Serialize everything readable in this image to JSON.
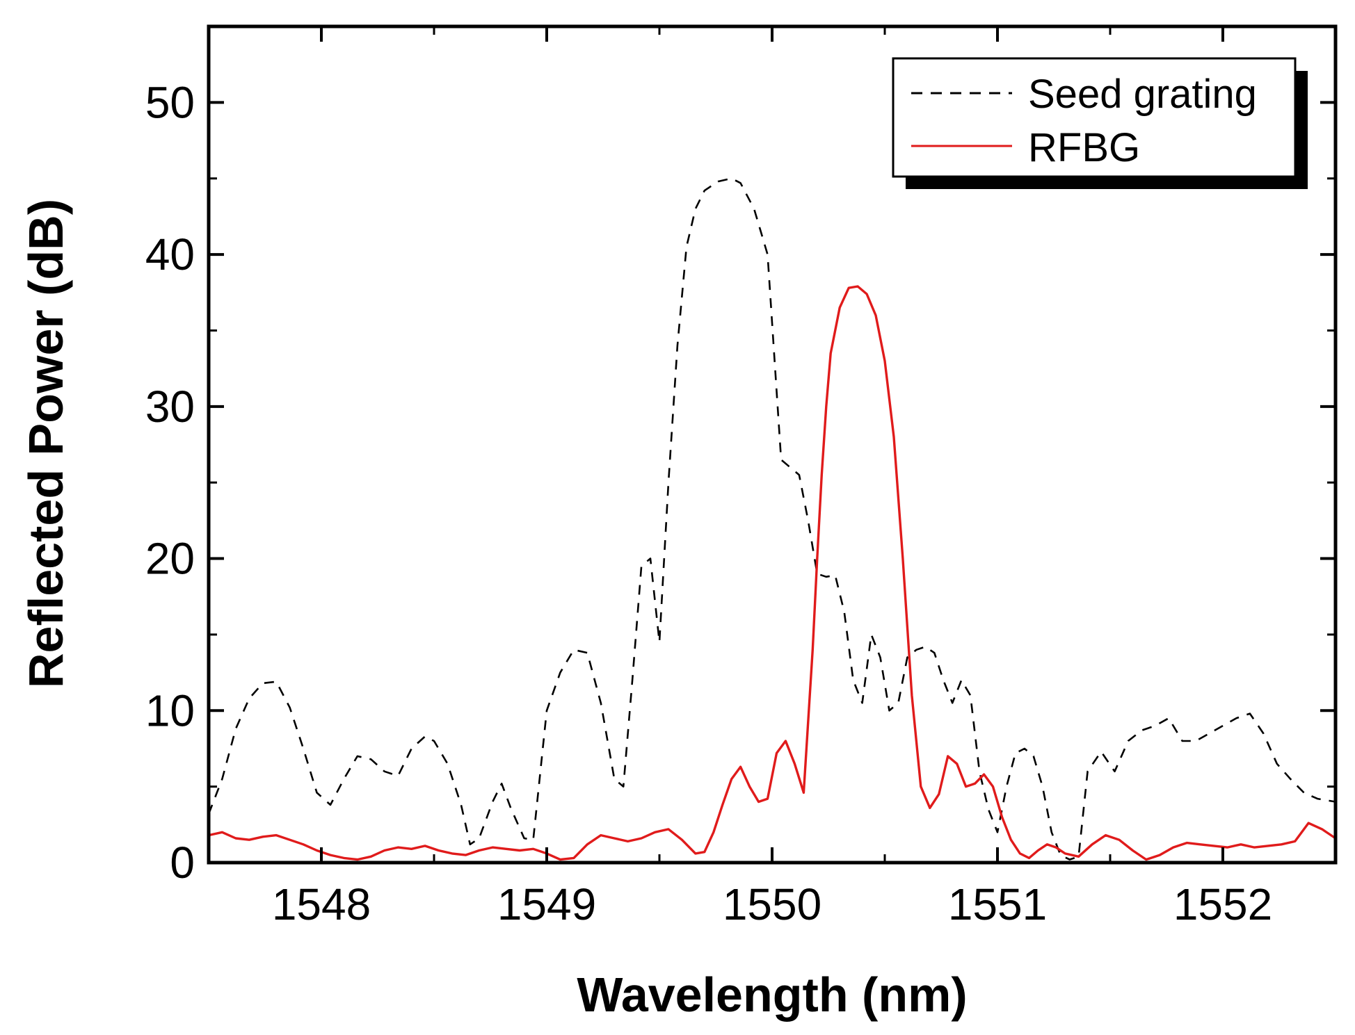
{
  "chart_data": {
    "type": "line",
    "title": "",
    "xlabel": "Wavelength (nm)",
    "ylabel": "Reflected Power (dB)",
    "xlim": [
      1547.5,
      1552.5
    ],
    "ylim": [
      0,
      55
    ],
    "xticks": [
      1548,
      1549,
      1550,
      1551,
      1552
    ],
    "yticks": [
      0,
      10,
      20,
      30,
      40,
      50
    ],
    "grid": false,
    "legend_position": "top-right",
    "series": [
      {
        "name": "Seed grating",
        "style": "dashed",
        "color": "#000000",
        "x": [
          1547.5,
          1547.56,
          1547.62,
          1547.68,
          1547.74,
          1547.8,
          1547.86,
          1547.92,
          1547.98,
          1548.04,
          1548.1,
          1548.16,
          1548.22,
          1548.28,
          1548.34,
          1548.4,
          1548.46,
          1548.5,
          1548.56,
          1548.62,
          1548.66,
          1548.7,
          1548.76,
          1548.8,
          1548.84,
          1548.9,
          1548.94,
          1549.0,
          1549.06,
          1549.12,
          1549.18,
          1549.24,
          1549.3,
          1549.34,
          1549.38,
          1549.42,
          1549.46,
          1549.5,
          1549.54,
          1549.58,
          1549.62,
          1549.66,
          1549.7,
          1549.76,
          1549.82,
          1549.86,
          1549.92,
          1549.98,
          1550.04,
          1550.08,
          1550.12,
          1550.16,
          1550.2,
          1550.24,
          1550.28,
          1550.32,
          1550.36,
          1550.4,
          1550.44,
          1550.48,
          1550.52,
          1550.56,
          1550.6,
          1550.64,
          1550.68,
          1550.72,
          1550.76,
          1550.8,
          1550.84,
          1550.88,
          1550.92,
          1550.96,
          1551.0,
          1551.04,
          1551.08,
          1551.12,
          1551.16,
          1551.2,
          1551.24,
          1551.28,
          1551.32,
          1551.36,
          1551.4,
          1551.46,
          1551.52,
          1551.58,
          1551.64,
          1551.7,
          1551.76,
          1551.82,
          1551.88,
          1551.94,
          1552.0,
          1552.06,
          1552.12,
          1552.18,
          1552.24,
          1552.3,
          1552.36,
          1552.42,
          1552.5
        ],
        "y": [
          3.2,
          5.5,
          8.8,
          10.8,
          11.8,
          11.9,
          10.2,
          7.5,
          4.6,
          3.8,
          5.5,
          7.0,
          6.8,
          6.0,
          5.7,
          7.5,
          8.3,
          8.0,
          6.5,
          3.8,
          1.2,
          1.6,
          4.0,
          5.2,
          3.6,
          1.6,
          1.5,
          10.0,
          12.5,
          14.0,
          13.8,
          10.5,
          5.5,
          5.0,
          12.0,
          19.5,
          20.0,
          14.5,
          25.0,
          34.0,
          40.5,
          43.0,
          44.2,
          44.8,
          45.0,
          44.7,
          43.0,
          40.0,
          26.5,
          26.0,
          25.5,
          22.5,
          19.0,
          18.8,
          18.9,
          16.5,
          12.0,
          10.5,
          15.0,
          13.5,
          10.0,
          10.5,
          13.5,
          14.0,
          14.2,
          13.8,
          12.0,
          10.5,
          12.0,
          11.0,
          6.0,
          3.5,
          2.0,
          5.0,
          7.2,
          7.5,
          7.0,
          5.0,
          2.0,
          0.5,
          0.2,
          0.4,
          6.0,
          7.3,
          6.0,
          8.0,
          8.7,
          9.0,
          9.5,
          8.0,
          8.0,
          8.5,
          9.0,
          9.5,
          9.8,
          8.5,
          6.5,
          5.5,
          4.6,
          4.2,
          4.0
        ]
      },
      {
        "name": "RFBG",
        "style": "solid",
        "color": "#e01b1b",
        "x": [
          1547.5,
          1547.56,
          1547.62,
          1547.68,
          1547.74,
          1547.8,
          1547.86,
          1547.92,
          1547.98,
          1548.04,
          1548.1,
          1548.16,
          1548.22,
          1548.28,
          1548.34,
          1548.4,
          1548.46,
          1548.52,
          1548.58,
          1548.64,
          1548.7,
          1548.76,
          1548.82,
          1548.88,
          1548.94,
          1549.0,
          1549.06,
          1549.12,
          1549.18,
          1549.24,
          1549.3,
          1549.36,
          1549.42,
          1549.48,
          1549.54,
          1549.6,
          1549.66,
          1549.7,
          1549.74,
          1549.78,
          1549.82,
          1549.86,
          1549.9,
          1549.94,
          1549.98,
          1550.02,
          1550.06,
          1550.1,
          1550.14,
          1550.18,
          1550.2,
          1550.22,
          1550.24,
          1550.26,
          1550.3,
          1550.34,
          1550.38,
          1550.42,
          1550.46,
          1550.5,
          1550.54,
          1550.58,
          1550.62,
          1550.66,
          1550.7,
          1550.74,
          1550.78,
          1550.82,
          1550.86,
          1550.9,
          1550.94,
          1550.98,
          1551.02,
          1551.06,
          1551.1,
          1551.14,
          1551.18,
          1551.22,
          1551.26,
          1551.3,
          1551.36,
          1551.42,
          1551.48,
          1551.54,
          1551.6,
          1551.66,
          1551.72,
          1551.78,
          1551.84,
          1551.9,
          1551.96,
          1552.02,
          1552.08,
          1552.14,
          1552.2,
          1552.26,
          1552.32,
          1552.38,
          1552.44,
          1552.5
        ],
        "y": [
          1.8,
          2.0,
          1.6,
          1.5,
          1.7,
          1.8,
          1.5,
          1.2,
          0.8,
          0.5,
          0.3,
          0.2,
          0.4,
          0.8,
          1.0,
          0.9,
          1.1,
          0.8,
          0.6,
          0.5,
          0.8,
          1.0,
          0.9,
          0.8,
          0.9,
          0.6,
          0.2,
          0.3,
          1.2,
          1.8,
          1.6,
          1.4,
          1.6,
          2.0,
          2.2,
          1.5,
          0.6,
          0.7,
          2.0,
          3.8,
          5.5,
          6.3,
          5.0,
          4.0,
          4.2,
          7.2,
          8.0,
          6.5,
          4.6,
          14.0,
          20.0,
          25.5,
          30.0,
          33.5,
          36.5,
          37.8,
          37.9,
          37.4,
          36.0,
          33.0,
          28.0,
          20.0,
          11.0,
          5.0,
          3.6,
          4.5,
          7.0,
          6.5,
          5.0,
          5.2,
          5.8,
          5.0,
          3.0,
          1.5,
          0.6,
          0.3,
          0.8,
          1.2,
          1.0,
          0.6,
          0.4,
          1.2,
          1.8,
          1.5,
          0.8,
          0.2,
          0.5,
          1.0,
          1.3,
          1.2,
          1.1,
          1.0,
          1.2,
          1.0,
          1.1,
          1.2,
          1.4,
          2.6,
          2.2,
          1.6
        ]
      }
    ]
  },
  "legend": {
    "items": [
      {
        "label": "Seed grating"
      },
      {
        "label": "RFBG"
      }
    ]
  }
}
